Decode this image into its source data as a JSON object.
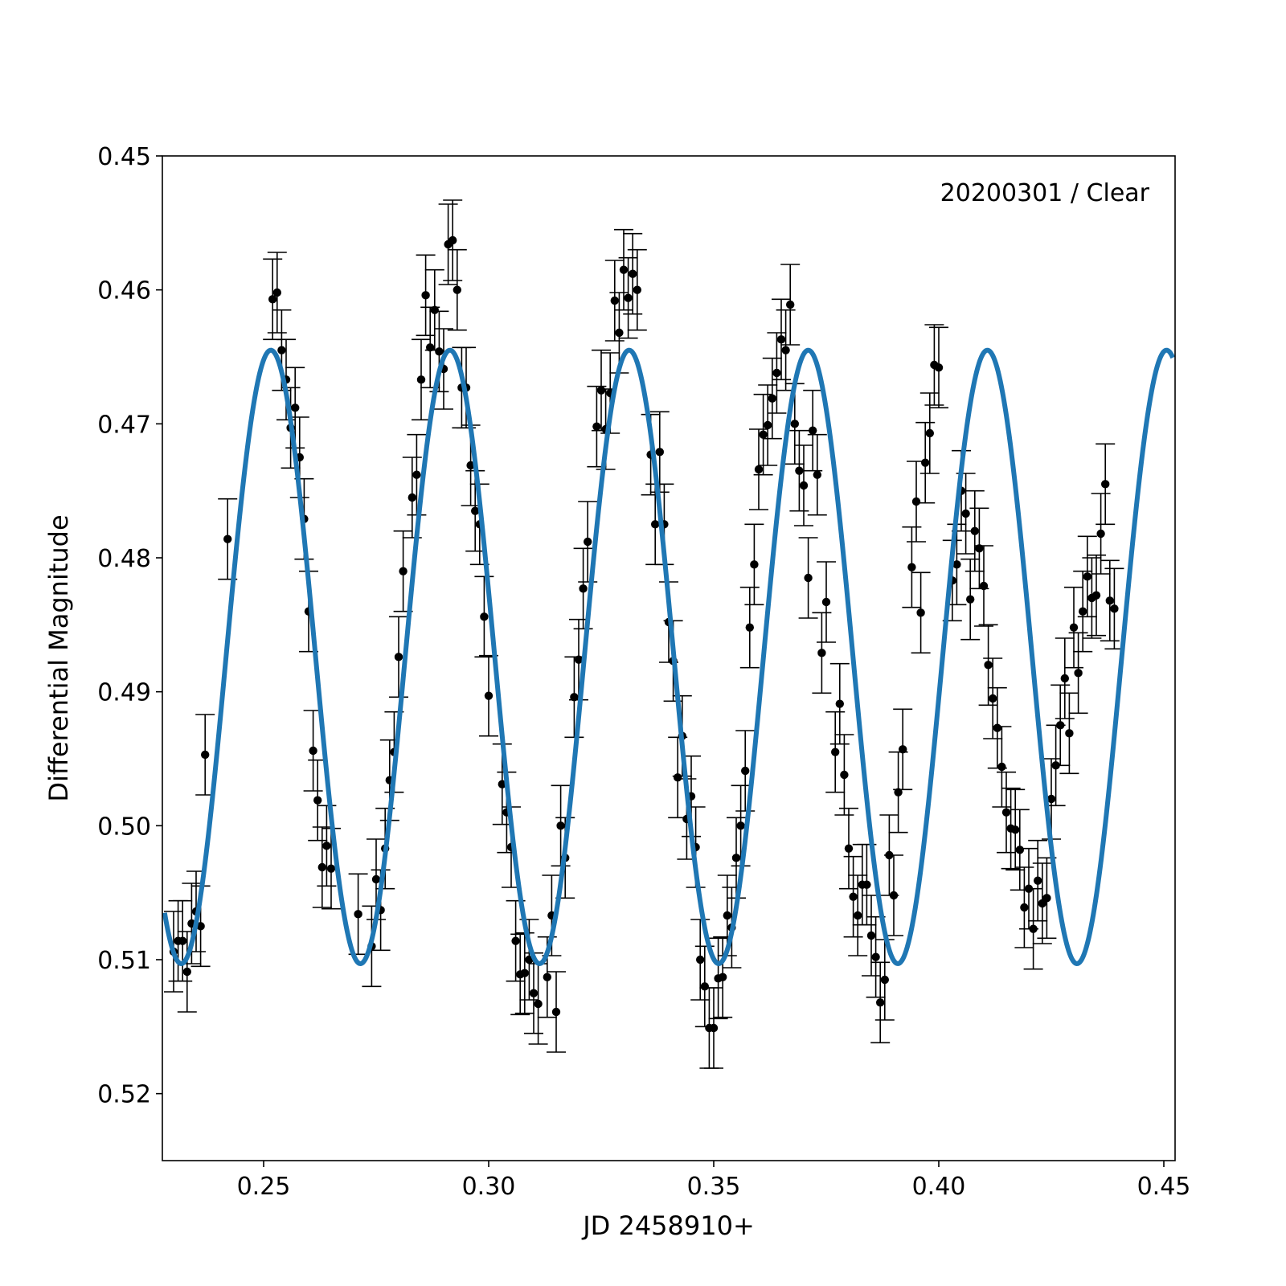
{
  "chart_data": {
    "type": "scatter",
    "title": "",
    "annotation": "20200301 / Clear",
    "xlabel": "JD 2458910+",
    "ylabel": "Differential Magnitude",
    "xlim": [
      0.2275,
      0.4525
    ],
    "ylim": [
      0.45,
      0.525
    ],
    "y_inverted": true,
    "xticks": [
      {
        "value": 0.25,
        "label": "0.25"
      },
      {
        "value": 0.3,
        "label": "0.30"
      },
      {
        "value": 0.35,
        "label": "0.35"
      },
      {
        "value": 0.4,
        "label": "0.40"
      },
      {
        "value": 0.45,
        "label": "0.45"
      }
    ],
    "yticks": [
      {
        "value": 0.45,
        "label": "0.45"
      },
      {
        "value": 0.46,
        "label": "0.46"
      },
      {
        "value": 0.47,
        "label": "0.47"
      },
      {
        "value": 0.48,
        "label": "0.48"
      },
      {
        "value": 0.49,
        "label": "0.49"
      },
      {
        "value": 0.5,
        "label": "0.50"
      },
      {
        "value": 0.51,
        "label": "0.51"
      },
      {
        "value": 0.52,
        "label": "0.52"
      }
    ],
    "grid": false,
    "legend": "none",
    "colors": {
      "points": "#000000",
      "fit": "#1f77b4"
    },
    "series": [
      {
        "kind": "scatter-errorbar",
        "error": 0.003,
        "points": [
          [
            0.23,
            0.5094
          ],
          [
            0.231,
            0.5086
          ],
          [
            0.232,
            0.5086
          ],
          [
            0.233,
            0.5109
          ],
          [
            0.234,
            0.5073
          ],
          [
            0.235,
            0.5064
          ],
          [
            0.236,
            0.5075
          ],
          [
            0.237,
            0.4947
          ],
          [
            0.242,
            0.4786
          ],
          [
            0.252,
            0.4607
          ],
          [
            0.253,
            0.4602
          ],
          [
            0.254,
            0.4645
          ],
          [
            0.255,
            0.4667
          ],
          [
            0.256,
            0.4703
          ],
          [
            0.257,
            0.4688
          ],
          [
            0.258,
            0.4725
          ],
          [
            0.259,
            0.4771
          ],
          [
            0.26,
            0.484
          ],
          [
            0.261,
            0.4944
          ],
          [
            0.262,
            0.4981
          ],
          [
            0.263,
            0.5031
          ],
          [
            0.264,
            0.5015
          ],
          [
            0.265,
            0.5032
          ],
          [
            0.271,
            0.5066
          ],
          [
            0.274,
            0.509
          ],
          [
            0.275,
            0.504
          ],
          [
            0.276,
            0.5063
          ],
          [
            0.277,
            0.5017
          ],
          [
            0.278,
            0.4966
          ],
          [
            0.279,
            0.4945
          ],
          [
            0.28,
            0.4874
          ],
          [
            0.281,
            0.481
          ],
          [
            0.283,
            0.4755
          ],
          [
            0.284,
            0.4738
          ],
          [
            0.285,
            0.4667
          ],
          [
            0.286,
            0.4604
          ],
          [
            0.287,
            0.4643
          ],
          [
            0.288,
            0.4615
          ],
          [
            0.289,
            0.4646
          ],
          [
            0.29,
            0.4659
          ],
          [
            0.291,
            0.4566
          ],
          [
            0.292,
            0.4563
          ],
          [
            0.293,
            0.46
          ],
          [
            0.294,
            0.4673
          ],
          [
            0.295,
            0.4673
          ],
          [
            0.296,
            0.4731
          ],
          [
            0.297,
            0.4765
          ],
          [
            0.298,
            0.4775
          ],
          [
            0.299,
            0.4844
          ],
          [
            0.3,
            0.4903
          ],
          [
            0.303,
            0.4969
          ],
          [
            0.304,
            0.499
          ],
          [
            0.305,
            0.5016
          ],
          [
            0.306,
            0.5086
          ],
          [
            0.307,
            0.5111
          ],
          [
            0.308,
            0.511
          ],
          [
            0.309,
            0.51
          ],
          [
            0.31,
            0.5125
          ],
          [
            0.311,
            0.5133
          ],
          [
            0.313,
            0.5113
          ],
          [
            0.314,
            0.5067
          ],
          [
            0.315,
            0.5139
          ],
          [
            0.316,
            0.5
          ],
          [
            0.317,
            0.5024
          ],
          [
            0.319,
            0.4904
          ],
          [
            0.32,
            0.4876
          ],
          [
            0.321,
            0.4823
          ],
          [
            0.322,
            0.4788
          ],
          [
            0.324,
            0.4702
          ],
          [
            0.325,
            0.4675
          ],
          [
            0.326,
            0.4704
          ],
          [
            0.327,
            0.4677
          ],
          [
            0.328,
            0.4608
          ],
          [
            0.329,
            0.4632
          ],
          [
            0.33,
            0.4585
          ],
          [
            0.331,
            0.4606
          ],
          [
            0.332,
            0.4588
          ],
          [
            0.333,
            0.46
          ],
          [
            0.336,
            0.4723
          ],
          [
            0.337,
            0.4775
          ],
          [
            0.338,
            0.4721
          ],
          [
            0.339,
            0.4775
          ],
          [
            0.34,
            0.4848
          ],
          [
            0.341,
            0.4877
          ],
          [
            0.342,
            0.4964
          ],
          [
            0.343,
            0.4933
          ],
          [
            0.344,
            0.4995
          ],
          [
            0.345,
            0.4978
          ],
          [
            0.346,
            0.5016
          ],
          [
            0.347,
            0.51
          ],
          [
            0.348,
            0.512
          ],
          [
            0.349,
            0.5151
          ],
          [
            0.35,
            0.5151
          ],
          [
            0.351,
            0.5114
          ],
          [
            0.352,
            0.5113
          ],
          [
            0.353,
            0.5067
          ],
          [
            0.354,
            0.5076
          ],
          [
            0.355,
            0.5024
          ],
          [
            0.356,
            0.5
          ],
          [
            0.357,
            0.4959
          ],
          [
            0.358,
            0.4852
          ],
          [
            0.359,
            0.4805
          ],
          [
            0.36,
            0.4734
          ],
          [
            0.361,
            0.4708
          ],
          [
            0.362,
            0.4701
          ],
          [
            0.363,
            0.4681
          ],
          [
            0.364,
            0.4662
          ],
          [
            0.365,
            0.4637
          ],
          [
            0.366,
            0.4645
          ],
          [
            0.367,
            0.4611
          ],
          [
            0.368,
            0.47
          ],
          [
            0.369,
            0.4735
          ],
          [
            0.37,
            0.4746
          ],
          [
            0.371,
            0.4815
          ],
          [
            0.372,
            0.4705
          ],
          [
            0.373,
            0.4738
          ],
          [
            0.374,
            0.4871
          ],
          [
            0.375,
            0.4833
          ],
          [
            0.377,
            0.4945
          ],
          [
            0.378,
            0.4909
          ],
          [
            0.379,
            0.4962
          ],
          [
            0.38,
            0.5017
          ],
          [
            0.381,
            0.5053
          ],
          [
            0.382,
            0.5067
          ],
          [
            0.383,
            0.5044
          ],
          [
            0.384,
            0.5044
          ],
          [
            0.385,
            0.5082
          ],
          [
            0.386,
            0.5098
          ],
          [
            0.387,
            0.5132
          ],
          [
            0.388,
            0.5115
          ],
          [
            0.389,
            0.5022
          ],
          [
            0.39,
            0.5052
          ],
          [
            0.391,
            0.4975
          ],
          [
            0.392,
            0.4943
          ],
          [
            0.394,
            0.4807
          ],
          [
            0.395,
            0.4758
          ],
          [
            0.396,
            0.4841
          ],
          [
            0.397,
            0.4729
          ],
          [
            0.398,
            0.4707
          ],
          [
            0.399,
            0.4656
          ],
          [
            0.4,
            0.4658
          ],
          [
            0.403,
            0.4817
          ],
          [
            0.404,
            0.4805
          ],
          [
            0.405,
            0.475
          ],
          [
            0.406,
            0.4767
          ],
          [
            0.407,
            0.4831
          ],
          [
            0.408,
            0.478
          ],
          [
            0.409,
            0.4793
          ],
          [
            0.41,
            0.4821
          ],
          [
            0.411,
            0.488
          ],
          [
            0.412,
            0.4905
          ],
          [
            0.413,
            0.4927
          ],
          [
            0.414,
            0.4956
          ],
          [
            0.415,
            0.499
          ],
          [
            0.416,
            0.5002
          ],
          [
            0.417,
            0.5003
          ],
          [
            0.418,
            0.5018
          ],
          [
            0.419,
            0.5061
          ],
          [
            0.42,
            0.5047
          ],
          [
            0.421,
            0.5077
          ],
          [
            0.422,
            0.5041
          ],
          [
            0.423,
            0.5058
          ],
          [
            0.424,
            0.5054
          ],
          [
            0.425,
            0.498
          ],
          [
            0.426,
            0.4955
          ],
          [
            0.427,
            0.4925
          ],
          [
            0.428,
            0.489
          ],
          [
            0.429,
            0.4931
          ],
          [
            0.43,
            0.4852
          ],
          [
            0.431,
            0.4886
          ],
          [
            0.432,
            0.484
          ],
          [
            0.433,
            0.4814
          ],
          [
            0.434,
            0.483
          ],
          [
            0.435,
            0.4828
          ],
          [
            0.436,
            0.4782
          ],
          [
            0.437,
            0.4745
          ],
          [
            0.438,
            0.4832
          ],
          [
            0.439,
            0.4838
          ]
        ]
      },
      {
        "kind": "sinusoid-fit",
        "mean": 0.4874,
        "amplitude": 0.0229,
        "period": 0.0398,
        "phase_peak_x": 0.2516,
        "x_range": [
          0.228,
          0.452
        ]
      }
    ]
  }
}
